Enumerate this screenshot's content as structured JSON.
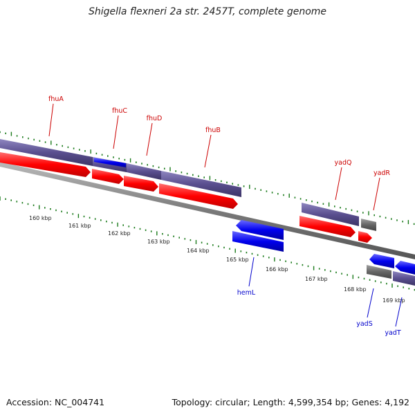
{
  "title": "Shigella flexneri 2a str. 2457T, complete genome",
  "footer": {
    "accession": "Accession: NC_004741",
    "stats": "Topology: circular; Length: 4,599,354 bp; Genes: 4,192"
  },
  "colors": {
    "forward_cds": "#ff0000",
    "reverse_cds": "#0000ee",
    "forward_label": "#cc0000",
    "reverse_label": "#0000cc",
    "gene_bar_purple": "#5a4f8f",
    "gene_bar_gray": "#666666",
    "backbone": "#888888",
    "tick": "#1a7a1a"
  },
  "kbp_labels": [
    "160 kbp",
    "161 kbp",
    "162 kbp",
    "163 kbp",
    "164 kbp",
    "165 kbp",
    "166 kbp",
    "167 kbp",
    "168 kbp",
    "169 kbp"
  ],
  "forward_genes": [
    {
      "name": "fhuA"
    },
    {
      "name": "fhuC"
    },
    {
      "name": "fhuD"
    },
    {
      "name": "fhuB"
    },
    {
      "name": "yadQ"
    },
    {
      "name": "yadR"
    }
  ],
  "reverse_genes": [
    {
      "name": "hemL"
    },
    {
      "name": "yadS"
    },
    {
      "name": "yadT"
    }
  ]
}
